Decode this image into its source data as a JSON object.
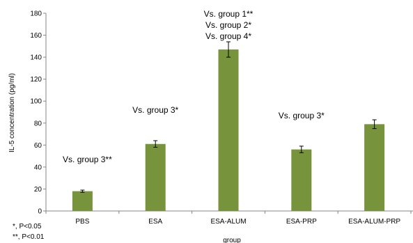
{
  "chart_data": {
    "type": "bar",
    "title": "",
    "xlabel": "group",
    "ylabel": "IL-5 concentration (pg/ml)",
    "ylim": [
      0,
      180
    ],
    "yticks": [
      0,
      20,
      40,
      60,
      80,
      100,
      120,
      140,
      160,
      180
    ],
    "grid": false,
    "bar_color": "#77933c",
    "categories": [
      "PBS",
      "ESA",
      "ESA-ALUM",
      "ESA-PRP",
      "ESA-ALUM-PRP"
    ],
    "values": [
      18,
      61,
      147,
      56,
      79
    ],
    "errors": [
      1,
      3,
      7,
      3,
      4
    ],
    "annotations": [
      {
        "category": "PBS",
        "lines": [
          "Vs. group 3**"
        ]
      },
      {
        "category": "ESA",
        "lines": [
          "Vs. group 3*"
        ]
      },
      {
        "category": "ESA-ALUM",
        "lines": [
          "Vs. group 1**",
          "Vs. group 2*",
          "Vs. group 4*"
        ]
      },
      {
        "category": "ESA-PRP",
        "lines": [
          "Vs. group 3*"
        ]
      }
    ],
    "footnotes": [
      "*, P<0.05",
      "**, P<0.01"
    ]
  }
}
